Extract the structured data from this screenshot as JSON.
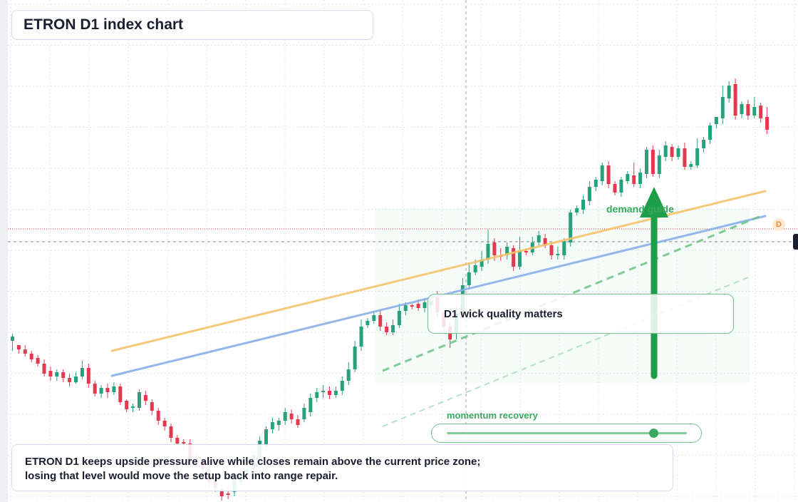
{
  "title": "ETRON D1 index chart",
  "annotation": "D1 wick quality matters",
  "zone_label": "demand guide",
  "momentum": {
    "label": "momentum recovery",
    "level": 0.86
  },
  "summary": {
    "line1": "ETRON D1 keeps upside pressure alive while closes remain above the current price zone;",
    "line2": "losing that level would move the setup back into range repair."
  },
  "badge": "D",
  "colors": {
    "up": "#26a17b",
    "down": "#e2394e",
    "upper_trend": "#f5c26b",
    "lower_trend": "#8aaee8",
    "zone": "#3aa95f",
    "grid": "#e3e6ee"
  },
  "chart_data": {
    "type": "candlestick",
    "interval": "D1",
    "grid": true,
    "ylim": [
      0,
      704
    ],
    "candles": [
      [
        226,
        232,
        212,
        236
      ],
      [
        220,
        214,
        208,
        218
      ],
      [
        214,
        208,
        204,
        220
      ],
      [
        208,
        200,
        196,
        212
      ],
      [
        202,
        194,
        190,
        206
      ],
      [
        194,
        180,
        176,
        200
      ],
      [
        184,
        176,
        170,
        190
      ],
      [
        176,
        182,
        170,
        186
      ],
      [
        182,
        174,
        168,
        186
      ],
      [
        174,
        168,
        162,
        180
      ],
      [
        168,
        176,
        166,
        182
      ],
      [
        176,
        188,
        172,
        198
      ],
      [
        188,
        166,
        160,
        194
      ],
      [
        166,
        152,
        148,
        170
      ],
      [
        152,
        160,
        146,
        164
      ],
      [
        160,
        154,
        146,
        166
      ],
      [
        154,
        162,
        150,
        168
      ],
      [
        162,
        140,
        136,
        166
      ],
      [
        142,
        130,
        126,
        144
      ],
      [
        132,
        134,
        126,
        138
      ],
      [
        132,
        154,
        128,
        158
      ],
      [
        150,
        142,
        136,
        156
      ],
      [
        140,
        128,
        122,
        144
      ],
      [
        128,
        114,
        108,
        132
      ],
      [
        114,
        106,
        100,
        118
      ],
      [
        106,
        90,
        84,
        110
      ],
      [
        90,
        82,
        78,
        94
      ],
      [
        84,
        82,
        74,
        88
      ],
      [
        82,
        62,
        56,
        88
      ],
      [
        62,
        60,
        52,
        66
      ],
      [
        58,
        46,
        40,
        62
      ],
      [
        46,
        28,
        20,
        50
      ],
      [
        28,
        20,
        14,
        32
      ],
      [
        18,
        8,
        2,
        24
      ],
      [
        12,
        10,
        4,
        20
      ],
      [
        14,
        32,
        8,
        36
      ],
      [
        28,
        40,
        22,
        44
      ],
      [
        36,
        46,
        30,
        52
      ],
      [
        46,
        66,
        40,
        70
      ],
      [
        60,
        86,
        54,
        92
      ],
      [
        78,
        102,
        72,
        106
      ],
      [
        102,
        112,
        96,
        118
      ],
      [
        108,
        114,
        100,
        118
      ],
      [
        114,
        126,
        108,
        132
      ],
      [
        124,
        116,
        110,
        130
      ],
      [
        116,
        108,
        104,
        122
      ],
      [
        116,
        132,
        112,
        138
      ],
      [
        126,
        146,
        120,
        152
      ],
      [
        146,
        154,
        140,
        160
      ],
      [
        154,
        156,
        146,
        164
      ],
      [
        156,
        150,
        144,
        162
      ],
      [
        150,
        156,
        146,
        162
      ],
      [
        156,
        170,
        150,
        176
      ],
      [
        170,
        186,
        164,
        196
      ],
      [
        186,
        218,
        182,
        226
      ],
      [
        218,
        246,
        212,
        256
      ],
      [
        248,
        254,
        244,
        258
      ],
      [
        254,
        262,
        250,
        268
      ],
      [
        262,
        246,
        240,
        270
      ],
      [
        246,
        238,
        234,
        252
      ],
      [
        238,
        248,
        234,
        256
      ],
      [
        248,
        268,
        244,
        278
      ],
      [
        268,
        276,
        262,
        280
      ],
      [
        276,
        274,
        270,
        278
      ],
      [
        278,
        272,
        268,
        284
      ],
      [
        272,
        280,
        266,
        286
      ],
      [
        276,
        282,
        270,
        290
      ],
      [
        288,
        266,
        260,
        296
      ],
      [
        266,
        246,
        236,
        272
      ],
      [
        246,
        228,
        216,
        252
      ],
      [
        236,
        264,
        228,
        274
      ],
      [
        264,
        304,
        256,
        314
      ],
      [
        304,
        322,
        298,
        336
      ],
      [
        322,
        332,
        318,
        340
      ],
      [
        330,
        340,
        324,
        352
      ],
      [
        340,
        362,
        334,
        382
      ],
      [
        364,
        346,
        338,
        370
      ],
      [
        346,
        344,
        338,
        356
      ],
      [
        346,
        358,
        340,
        364
      ],
      [
        356,
        330,
        324,
        360
      ],
      [
        330,
        352,
        326,
        372
      ],
      [
        352,
        350,
        346,
        356
      ],
      [
        350,
        364,
        346,
        372
      ],
      [
        364,
        374,
        360,
        380
      ],
      [
        370,
        360,
        356,
        376
      ],
      [
        360,
        346,
        340,
        364
      ],
      [
        346,
        348,
        340,
        358
      ],
      [
        346,
        366,
        340,
        370
      ],
      [
        364,
        406,
        358,
        410
      ],
      [
        406,
        412,
        402,
        416
      ],
      [
        410,
        424,
        404,
        430
      ],
      [
        422,
        442,
        416,
        450
      ],
      [
        442,
        452,
        436,
        456
      ],
      [
        450,
        472,
        444,
        476
      ],
      [
        472,
        446,
        440,
        478
      ],
      [
        446,
        434,
        430,
        450
      ],
      [
        434,
        452,
        428,
        456
      ],
      [
        450,
        460,
        446,
        464
      ],
      [
        458,
        446,
        442,
        476
      ],
      [
        446,
        462,
        440,
        468
      ],
      [
        460,
        494,
        454,
        498
      ],
      [
        494,
        460,
        456,
        500
      ],
      [
        460,
        486,
        454,
        494
      ],
      [
        484,
        500,
        478,
        506
      ],
      [
        498,
        484,
        478,
        502
      ],
      [
        484,
        496,
        480,
        500
      ],
      [
        496,
        470,
        466,
        504
      ],
      [
        470,
        474,
        466,
        478
      ],
      [
        472,
        496,
        468,
        510
      ],
      [
        496,
        508,
        490,
        512
      ],
      [
        508,
        528,
        502,
        532
      ],
      [
        530,
        540,
        524,
        534
      ],
      [
        538,
        568,
        530,
        584
      ],
      [
        566,
        584,
        560,
        590
      ],
      [
        586,
        542,
        536,
        594
      ],
      [
        544,
        558,
        538,
        562
      ],
      [
        558,
        542,
        536,
        564
      ],
      [
        542,
        554,
        538,
        568
      ],
      [
        556,
        538,
        532,
        560
      ],
      [
        540,
        522,
        516,
        554
      ]
    ]
  }
}
